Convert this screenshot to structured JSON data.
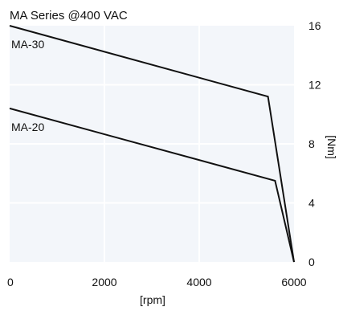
{
  "chart_data": {
    "type": "line",
    "title": "MA Series @400 VAC",
    "xlabel": "[rpm]",
    "ylabel": "[Nm]",
    "xlim": [
      0,
      6000
    ],
    "ylim": [
      0,
      16
    ],
    "xticks": [
      0,
      2000,
      4000,
      6000
    ],
    "yticks": [
      0,
      4,
      8,
      12,
      16
    ],
    "y_axis_position": "right",
    "grid": true,
    "grid_color": "#ffffff",
    "plot_background": "#f3f6fa",
    "line_color": "#111111",
    "series": [
      {
        "name": "MA-30",
        "points": [
          [
            0,
            16.0
          ],
          [
            5450,
            11.2
          ],
          [
            6000,
            0
          ]
        ]
      },
      {
        "name": "MA-20",
        "points": [
          [
            0,
            10.4
          ],
          [
            5600,
            5.5
          ],
          [
            6000,
            0
          ]
        ]
      }
    ]
  }
}
